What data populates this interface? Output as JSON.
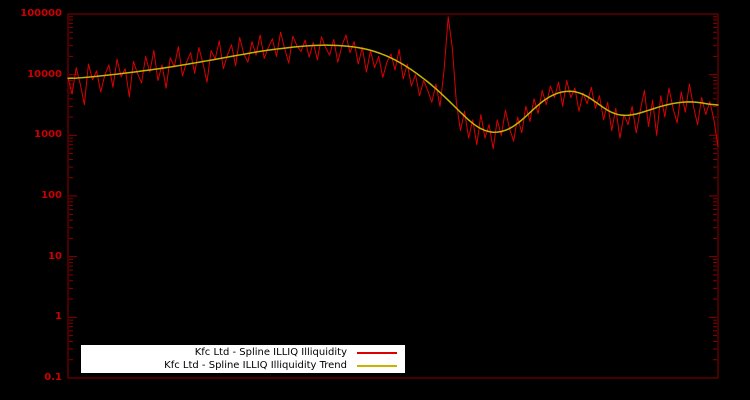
{
  "chart_data": {
    "type": "line",
    "title": "",
    "xlabel": "",
    "ylabel": "",
    "background": "#000000",
    "border_color": "#8b0000",
    "tick_label_color": "#cc0000",
    "y_scale": "log",
    "ylim": [
      0.1,
      100000
    ],
    "grid": false,
    "legend_position": "bottom-left-inside",
    "yticks": [
      {
        "v": 100000,
        "label": "100000"
      },
      {
        "v": 10000,
        "label": "10000"
      },
      {
        "v": 1000,
        "label": "1000"
      },
      {
        "v": 100,
        "label": "100"
      },
      {
        "v": 10,
        "label": "10"
      },
      {
        "v": 1,
        "label": "1"
      },
      {
        "v": 0.1,
        "label": "0.1"
      }
    ],
    "x_count": 160,
    "series": [
      {
        "name": "Kfc Ltd - Spline ILLIQ Illiquidity",
        "color": "#dc0000",
        "values": [
          9000,
          4800,
          13000,
          7000,
          3200,
          15000,
          8200,
          11500,
          5200,
          9800,
          14500,
          6200,
          18000,
          9200,
          12500,
          4300,
          16500,
          10500,
          7300,
          20000,
          11000,
          25000,
          8000,
          14500,
          6000,
          19000,
          13500,
          29000,
          9500,
          16000,
          23000,
          10500,
          28000,
          15500,
          7500,
          25000,
          18000,
          36000,
          12500,
          21000,
          31000,
          14000,
          41000,
          22000,
          16000,
          35000,
          21000,
          45000,
          18500,
          28000,
          39000,
          20000,
          50000,
          27000,
          15500,
          43000,
          30000,
          24000,
          37000,
          19500,
          34000,
          17500,
          42000,
          28000,
          21000,
          38000,
          16000,
          30000,
          45000,
          23000,
          35000,
          15000,
          28000,
          11000,
          25000,
          13000,
          20000,
          9000,
          16000,
          22000,
          12000,
          26000,
          8500,
          15000,
          6500,
          10000,
          4500,
          8000,
          5500,
          3500,
          7000,
          3000,
          12000,
          90000,
          28000,
          3500,
          1200,
          2500,
          900,
          1800,
          700,
          2200,
          900,
          1500,
          600,
          1800,
          1000,
          2600,
          1300,
          800,
          2000,
          1100,
          3000,
          1700,
          4000,
          2300,
          5500,
          3200,
          6500,
          4200,
          7500,
          3000,
          8000,
          4200,
          6000,
          2500,
          5000,
          3300,
          6200,
          2800,
          4500,
          1800,
          3500,
          1200,
          2800,
          900,
          2200,
          1500,
          3000,
          1100,
          2600,
          5500,
          1400,
          3800,
          1000,
          4500,
          2000,
          6000,
          2800,
          1600,
          5200,
          2400,
          7000,
          3000,
          1500,
          4200,
          2200,
          3600,
          1800,
          650
        ]
      },
      {
        "name": "Kfc Ltd - Spline ILLIQ Illiquidity Trend",
        "color": "#c8b400",
        "anchors": [
          [
            0,
            8500
          ],
          [
            8,
            9500
          ],
          [
            16,
            11000
          ],
          [
            24,
            13000
          ],
          [
            32,
            16000
          ],
          [
            40,
            20000
          ],
          [
            48,
            25000
          ],
          [
            56,
            29000
          ],
          [
            62,
            31000
          ],
          [
            68,
            30000
          ],
          [
            74,
            26000
          ],
          [
            80,
            18000
          ],
          [
            85,
            11000
          ],
          [
            90,
            6000
          ],
          [
            95,
            2800
          ],
          [
            100,
            1300
          ],
          [
            104,
            1050
          ],
          [
            108,
            1200
          ],
          [
            112,
            2000
          ],
          [
            116,
            3800
          ],
          [
            120,
            5300
          ],
          [
            124,
            5600
          ],
          [
            128,
            4200
          ],
          [
            132,
            2400
          ],
          [
            136,
            2000
          ],
          [
            140,
            2300
          ],
          [
            144,
            2900
          ],
          [
            148,
            3400
          ],
          [
            153,
            3700
          ],
          [
            159,
            3000
          ]
        ]
      }
    ],
    "legend": {
      "entries": [
        {
          "label": "Kfc Ltd - Spline ILLIQ Illiquidity"
        },
        {
          "label": "Kfc Ltd - Spline ILLIQ Illiquidity Trend"
        }
      ]
    }
  }
}
